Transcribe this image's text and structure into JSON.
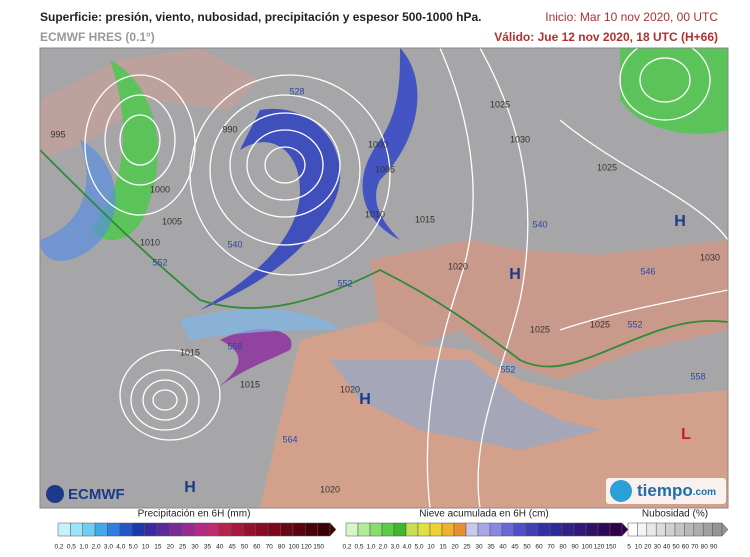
{
  "header": {
    "title": "Superficie: presión, viento, nubosidad, precipitación y espesor 500-1000 hPa.",
    "model": "ECMWF HRES (0.1°)",
    "init": "Inicio: Mar 10 nov 2020, 00 UTC",
    "valid": "Válido: Jue 12 nov 2020, 18 UTC (H+66)"
  },
  "map": {
    "labels": [
      "995",
      "990",
      "1000",
      "1005",
      "1010",
      "552",
      "552",
      "540",
      "528",
      "1000",
      "1005",
      "1010",
      "1015",
      "1020",
      "1025",
      "1030",
      "540",
      "1025",
      "546",
      "1030",
      "552",
      "1025",
      "1025",
      "552",
      "558",
      "1015",
      "558",
      "1015",
      "1020",
      "564",
      "1020",
      "H",
      "H",
      "H",
      "H",
      "L"
    ]
  },
  "logos": {
    "ecmwf": "ECMWF",
    "tiempo": "tiempo",
    "tiempo_suffix": ".com"
  },
  "legend": {
    "precip": {
      "title": "Precipitación en 6H (mm)",
      "ticks": [
        "0,2",
        "0,5",
        "1,0",
        "2,0",
        "3,0",
        "4,0",
        "5,0",
        "10",
        "15",
        "20",
        "25",
        "30",
        "35",
        "40",
        "45",
        "50",
        "60",
        "70",
        "80",
        "100",
        "120",
        "150"
      ]
    },
    "snow": {
      "title": "Nieve acumulada en 6H (cm)",
      "ticks": [
        "0,2",
        "0,5",
        "1,0",
        "2,0",
        "3,0",
        "4,0",
        "5,0",
        "10",
        "15",
        "20",
        "25",
        "30",
        "35",
        "40",
        "45",
        "50",
        "60",
        "70",
        "80",
        "90",
        "100",
        "120",
        "150"
      ]
    },
    "cloud": {
      "title": "Nubosidad (%)",
      "ticks": [
        "5",
        "10",
        "20",
        "30",
        "40",
        "50",
        "60",
        "70",
        "80",
        "90"
      ]
    }
  }
}
